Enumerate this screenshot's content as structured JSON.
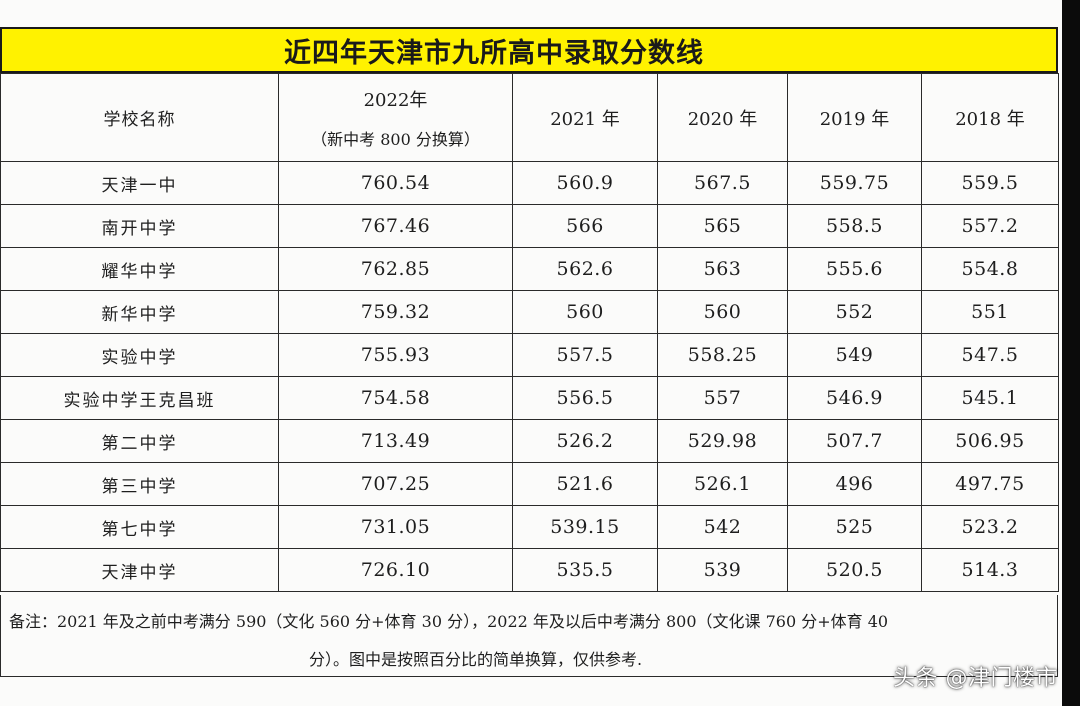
{
  "title": "近四年天津市九所高中录取分数线",
  "header": {
    "school": "学校名称",
    "years": [
      {
        "label": "2022年",
        "sub": "（新中考 800 分换算）"
      },
      {
        "label": "2021 年",
        "sub": ""
      },
      {
        "label": "2020 年",
        "sub": ""
      },
      {
        "label": "2019 年",
        "sub": ""
      },
      {
        "label": "2018 年",
        "sub": ""
      }
    ]
  },
  "rows": [
    {
      "school": "天津一中",
      "scores": [
        "760.54",
        "560.9",
        "567.5",
        "559.75",
        "559.5"
      ]
    },
    {
      "school": "南开中学",
      "scores": [
        "767.46",
        "566",
        "565",
        "558.5",
        "557.2"
      ]
    },
    {
      "school": "耀华中学",
      "scores": [
        "762.85",
        "562.6",
        "563",
        "555.6",
        "554.8"
      ]
    },
    {
      "school": "新华中学",
      "scores": [
        "759.32",
        "560",
        "560",
        "552",
        "551"
      ]
    },
    {
      "school": "实验中学",
      "scores": [
        "755.93",
        "557.5",
        "558.25",
        "549",
        "547.5"
      ]
    },
    {
      "school": "实验中学王克昌班",
      "scores": [
        "754.58",
        "556.5",
        "557",
        "546.9",
        "545.1"
      ]
    },
    {
      "school": "第二中学",
      "scores": [
        "713.49",
        "526.2",
        "529.98",
        "507.7",
        "506.95"
      ]
    },
    {
      "school": "第三中学",
      "scores": [
        "707.25",
        "521.6",
        "526.1",
        "496",
        "497.75"
      ]
    },
    {
      "school": "第七中学",
      "scores": [
        "731.05",
        "539.15",
        "542",
        "525",
        "523.2"
      ]
    },
    {
      "school": "天津中学",
      "scores": [
        "726.10",
        "535.5",
        "539",
        "520.5",
        "514.3"
      ]
    }
  ],
  "note": {
    "line1": "备注：2021 年及之前中考满分 590（文化 560 分+体育 30 分），2022 年及以后中考满分 800（文化课 760 分+体育 40",
    "line2": "分）。图中是按照百分比的简单换算，仅供参考."
  },
  "watermark": "头条 @津门楼市",
  "colors": {
    "title_background": "#fff200",
    "page_background": "#fbfbfa"
  }
}
